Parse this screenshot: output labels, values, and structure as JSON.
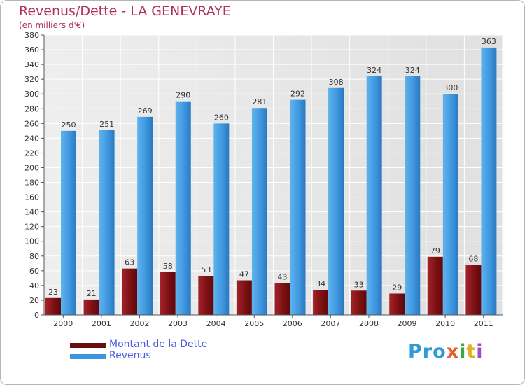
{
  "header": {
    "title": "Revenus/Dette - LA GENEVRAYE",
    "subtitle": "(en milliers d'€)"
  },
  "legend": {
    "dette_label": "Montant de la Dette",
    "revenus_label": "Revenus"
  },
  "logo": {
    "text": "Proxiti",
    "letters": [
      "P",
      "r",
      "o",
      "x",
      "i",
      "t",
      "i"
    ],
    "colors": [
      "#2e9bd6",
      "#2e9bd6",
      "#2e9bd6",
      "#e85d2a",
      "#3aa84a",
      "#e0b020",
      "#9b4fc0"
    ]
  },
  "colors": {
    "dette": "#7a0f12",
    "revenus": "#3d95dd",
    "title": "#b0315a",
    "legend_text": "#4a5be0"
  },
  "chart_data": {
    "type": "bar",
    "title": "Revenus/Dette - LA GENEVRAYE",
    "subtitle": "(en milliers d'€)",
    "categories": [
      "2000",
      "2001",
      "2002",
      "2003",
      "2004",
      "2005",
      "2006",
      "2007",
      "2008",
      "2009",
      "2010",
      "2011"
    ],
    "series": [
      {
        "name": "Montant de la Dette",
        "values": [
          23,
          21,
          63,
          58,
          53,
          47,
          43,
          34,
          33,
          29,
          79,
          68
        ]
      },
      {
        "name": "Revenus",
        "values": [
          250,
          251,
          269,
          290,
          260,
          281,
          292,
          308,
          324,
          324,
          300,
          363
        ]
      }
    ],
    "ylim": [
      0,
      380
    ],
    "yticks": [
      0,
      20,
      40,
      60,
      80,
      100,
      120,
      140,
      160,
      180,
      200,
      220,
      240,
      260,
      280,
      300,
      320,
      340,
      360,
      380
    ],
    "grid": true,
    "legend": "bottom-left"
  }
}
